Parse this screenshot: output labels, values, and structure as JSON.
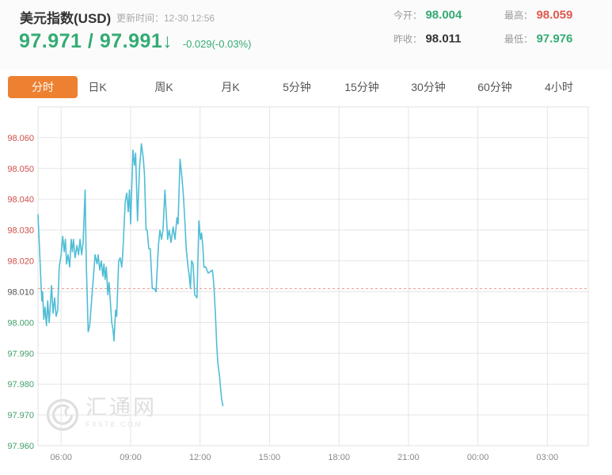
{
  "header": {
    "title": "美元指数(USD)",
    "update_time": "更新时间：12-30 12:56",
    "price": {
      "bid": "97.971",
      "separator": " / ",
      "ask": "97.991",
      "arrow": "↓",
      "change": "-0.029(-0.03%)"
    },
    "stats": [
      {
        "label": "今开：",
        "value": "98.004",
        "color": "#33ab73"
      },
      {
        "label": "昨收：",
        "value": "98.011",
        "color": "#333333"
      },
      {
        "label": "最高：",
        "value": "98.059",
        "color": "#e2574d"
      },
      {
        "label": "最低：",
        "value": "97.976",
        "color": "#33ab73"
      }
    ]
  },
  "tabs": {
    "active": "分时",
    "items": [
      {
        "label": "分时"
      },
      {
        "label": "日K"
      },
      {
        "label": "周K"
      },
      {
        "label": "月K"
      },
      {
        "label": "5分钟"
      },
      {
        "label": "15分钟"
      },
      {
        "label": "30分钟"
      },
      {
        "label": "60分钟"
      },
      {
        "label": "4小时"
      }
    ]
  },
  "watermark": {
    "name": "汇通网",
    "site": "FX678.COM"
  },
  "colors": {
    "accent_green": "#33ab73",
    "accent_red": "#e2574d",
    "active_tab_orange": "#ee8131",
    "line_blue": "#4fbdd6",
    "prev_close_dash": "#ef968c",
    "grid": "#e5e5e5",
    "ytick_red": "#cf4e49",
    "ytick_green": "#43a06a",
    "ytick_dark": "#555555",
    "xtick_gray": "#888888"
  },
  "chart_data": {
    "type": "line",
    "title": "美元指数(USD) 分时",
    "x_start_time": "05:00",
    "x_total_minutes": 1426,
    "x_ticks": [
      {
        "m": 60,
        "label": "06:00"
      },
      {
        "m": 240,
        "label": "09:00"
      },
      {
        "m": 420,
        "label": "12:00"
      },
      {
        "m": 600,
        "label": "15:00"
      },
      {
        "m": 780,
        "label": "18:00"
      },
      {
        "m": 960,
        "label": "21:00"
      },
      {
        "m": 1140,
        "label": "00:00"
      },
      {
        "m": 1320,
        "label": "03:00"
      }
    ],
    "ylim": [
      97.96,
      98.07
    ],
    "y_ticks": [
      {
        "v": 98.06,
        "label": "98.060",
        "color": "#cf4e49"
      },
      {
        "v": 98.05,
        "label": "98.050",
        "color": "#cf4e49"
      },
      {
        "v": 98.04,
        "label": "98.040",
        "color": "#cf4e49"
      },
      {
        "v": 98.03,
        "label": "98.030",
        "color": "#cf4e49"
      },
      {
        "v": 98.02,
        "label": "98.020",
        "color": "#cf4e49"
      },
      {
        "v": 98.01,
        "label": "98.010",
        "color": "#555555"
      },
      {
        "v": 98.0,
        "label": "98.000",
        "color": "#43a06a"
      },
      {
        "v": 97.99,
        "label": "97.990",
        "color": "#43a06a"
      },
      {
        "v": 97.98,
        "label": "97.980",
        "color": "#43a06a"
      },
      {
        "v": 97.97,
        "label": "97.970",
        "color": "#43a06a"
      },
      {
        "v": 97.96,
        "label": "97.960",
        "color": "#43a06a"
      }
    ],
    "prev_close": 98.011,
    "grid": true,
    "legend": "none",
    "points": [
      [
        0,
        98.035
      ],
      [
        4,
        98.024
      ],
      [
        8,
        98.012
      ],
      [
        10,
        98.007
      ],
      [
        12,
        98.01
      ],
      [
        15,
        98.001
      ],
      [
        18,
        98.005
      ],
      [
        22,
        97.999
      ],
      [
        25,
        98.007
      ],
      [
        29,
        98.0
      ],
      [
        35,
        98.012
      ],
      [
        39,
        98.003
      ],
      [
        43,
        98.008
      ],
      [
        47,
        98.002
      ],
      [
        51,
        98.004
      ],
      [
        55,
        98.018
      ],
      [
        60,
        98.022
      ],
      [
        64,
        98.028
      ],
      [
        68,
        98.023
      ],
      [
        71,
        98.027
      ],
      [
        74,
        98.019
      ],
      [
        78,
        98.022
      ],
      [
        82,
        98.018
      ],
      [
        86,
        98.027
      ],
      [
        89,
        98.023
      ],
      [
        92,
        98.027
      ],
      [
        96,
        98.021
      ],
      [
        101,
        98.025
      ],
      [
        105,
        98.022
      ],
      [
        109,
        98.027
      ],
      [
        113,
        98.022
      ],
      [
        117,
        98.026
      ],
      [
        122,
        98.043
      ],
      [
        125,
        98.02
      ],
      [
        130,
        97.997
      ],
      [
        134,
        97.999
      ],
      [
        148,
        98.022
      ],
      [
        153,
        98.019
      ],
      [
        156,
        98.022
      ],
      [
        160,
        98.017
      ],
      [
        164,
        98.02
      ],
      [
        168,
        98.015
      ],
      [
        171,
        98.019
      ],
      [
        174,
        98.014
      ],
      [
        177,
        98.018
      ],
      [
        181,
        98.009
      ],
      [
        184,
        98.013
      ],
      [
        187,
        98.008
      ],
      [
        191,
        98.0
      ],
      [
        194,
        97.998
      ],
      [
        197,
        97.994
      ],
      [
        201,
        98.004
      ],
      [
        204,
        98.002
      ],
      [
        209,
        98.02
      ],
      [
        213,
        98.021
      ],
      [
        217,
        98.018
      ],
      [
        220,
        98.023
      ],
      [
        226,
        98.039
      ],
      [
        230,
        98.042
      ],
      [
        234,
        98.036
      ],
      [
        237,
        98.043
      ],
      [
        240,
        98.032
      ],
      [
        246,
        98.056
      ],
      [
        250,
        98.051
      ],
      [
        253,
        98.055
      ],
      [
        258,
        98.033
      ],
      [
        263,
        98.05
      ],
      [
        268,
        98.058
      ],
      [
        273,
        98.053
      ],
      [
        276,
        98.048
      ],
      [
        280,
        98.03
      ],
      [
        283,
        98.03
      ],
      [
        287,
        98.024
      ],
      [
        291,
        98.024
      ],
      [
        296,
        98.011
      ],
      [
        302,
        98.011
      ],
      [
        306,
        98.01
      ],
      [
        312,
        98.025
      ],
      [
        316,
        98.03
      ],
      [
        320,
        98.027
      ],
      [
        324,
        98.03
      ],
      [
        329,
        98.043
      ],
      [
        336,
        98.027
      ],
      [
        340,
        98.03
      ],
      [
        345,
        98.026
      ],
      [
        350,
        98.031
      ],
      [
        355,
        98.027
      ],
      [
        360,
        98.034
      ],
      [
        363,
        98.032
      ],
      [
        368,
        98.053
      ],
      [
        373,
        98.047
      ],
      [
        377,
        98.041
      ],
      [
        381,
        98.032
      ],
      [
        384,
        98.024
      ],
      [
        388,
        98.019
      ],
      [
        392,
        98.015
      ],
      [
        395,
        98.011
      ],
      [
        398,
        98.02
      ],
      [
        402,
        98.019
      ],
      [
        406,
        98.009
      ],
      [
        412,
        98.008
      ],
      [
        417,
        98.033
      ],
      [
        421,
        98.027
      ],
      [
        424,
        98.029
      ],
      [
        427,
        98.025
      ],
      [
        430,
        98.018
      ],
      [
        435,
        98.018
      ],
      [
        441,
        98.016
      ],
      [
        452,
        98.017
      ],
      [
        456,
        98.012
      ],
      [
        460,
        98.002
      ],
      [
        463,
        97.993
      ],
      [
        466,
        97.987
      ],
      [
        470,
        97.983
      ],
      [
        473,
        97.979
      ],
      [
        476,
        97.975
      ],
      [
        479,
        97.973
      ]
    ]
  }
}
